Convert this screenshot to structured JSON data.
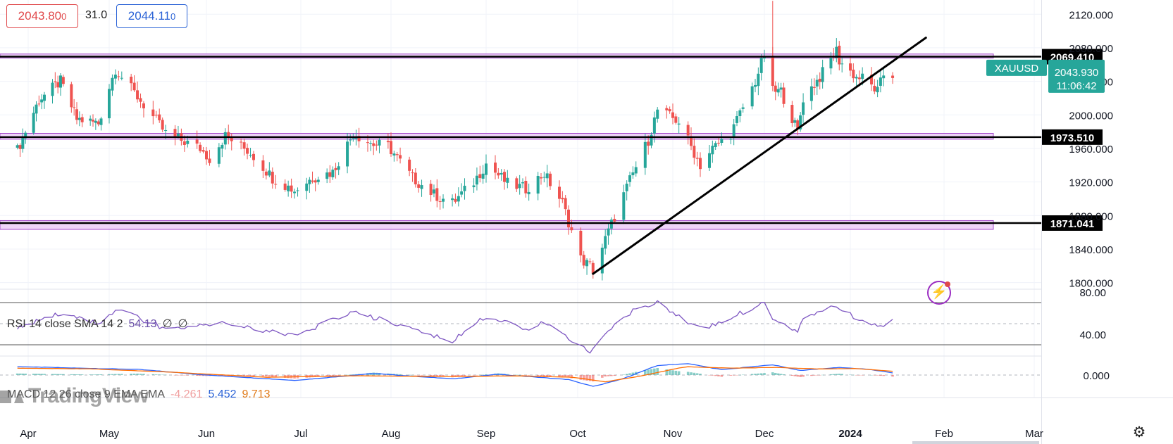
{
  "header": {
    "bid": "2043.80",
    "bid_small": "0",
    "spread": "31.0",
    "ask": "2044.11",
    "ask_small": "0"
  },
  "symbol": "XAUUSD",
  "price_tag": {
    "price": "2043.930",
    "countdown": "11:06:42",
    "color": "#26a69a"
  },
  "colors": {
    "up": "#26a69a",
    "down": "#ef5350",
    "zone_fill": "#e9c6f5",
    "zone_border": "#a347c9",
    "rsi_line": "#7e57c2",
    "macd_line": "#2962ff",
    "signal_line": "#ff6d00"
  },
  "icons": {
    "alert": "lightning-alert-icon",
    "settings": "gear-icon"
  },
  "watermark": "TradingView",
  "chart_data": {
    "type": "candlestick",
    "x_axis_ticks": [
      "Apr",
      "May",
      "Jun",
      "Jul",
      "Aug",
      "Sep",
      "Oct",
      "Nov",
      "Dec",
      "2024",
      "Feb",
      "Mar"
    ],
    "y_axis_ticks": [
      "2120.000",
      "2080.000",
      "2040.000",
      "2000.000",
      "1960.000",
      "1920.000",
      "1880.000",
      "1840.000",
      "1800.000"
    ],
    "ylim": [
      1793,
      2137
    ],
    "horizontal_levels": [
      "2069.410",
      "1973.510",
      "1871.041"
    ],
    "zones": [
      {
        "low": 2067.8,
        "high": 2072.6
      },
      {
        "low": 1971.0,
        "high": 1978.0
      },
      {
        "low": 1863.5,
        "high": 1874.0
      }
    ],
    "trendline": {
      "from": {
        "date": "2023-10-06",
        "price": 1810.5
      },
      "to": {
        "date": "2024-01-26",
        "price": 2092.0
      }
    },
    "pivots": [
      [
        "2023-03-28",
        1958
      ],
      [
        "2023-04-05",
        2018
      ],
      [
        "2023-04-13",
        2040
      ],
      [
        "2023-04-19",
        1995
      ],
      [
        "2023-04-27",
        1990
      ],
      [
        "2023-05-03",
        2055
      ],
      [
        "2023-05-04",
        2050
      ],
      [
        "2023-05-12",
        2012
      ],
      [
        "2023-05-19",
        1978
      ],
      [
        "2023-05-30",
        1960
      ],
      [
        "2023-06-02",
        1948
      ],
      [
        "2023-06-07",
        1975
      ],
      [
        "2023-06-15",
        1955
      ],
      [
        "2023-06-22",
        1925
      ],
      [
        "2023-06-29",
        1910
      ],
      [
        "2023-07-05",
        1925
      ],
      [
        "2023-07-12",
        1932
      ],
      [
        "2023-07-19",
        1978
      ],
      [
        "2023-07-26",
        1965
      ],
      [
        "2023-07-31",
        1963
      ],
      [
        "2023-08-08",
        1925
      ],
      [
        "2023-08-15",
        1905
      ],
      [
        "2023-08-21",
        1895
      ],
      [
        "2023-08-28",
        1920
      ],
      [
        "2023-09-01",
        1942
      ],
      [
        "2023-09-08",
        1918
      ],
      [
        "2023-09-14",
        1912
      ],
      [
        "2023-09-20",
        1930
      ],
      [
        "2023-09-26",
        1895
      ],
      [
        "2023-10-02",
        1828
      ],
      [
        "2023-10-05",
        1820
      ],
      [
        "2023-10-06",
        1815
      ],
      [
        "2023-10-12",
        1870
      ],
      [
        "2023-10-18",
        1922
      ],
      [
        "2023-10-24",
        1970
      ],
      [
        "2023-10-27",
        2006
      ],
      [
        "2023-11-03",
        1992
      ],
      [
        "2023-11-10",
        1940
      ],
      [
        "2023-11-14",
        1960
      ],
      [
        "2023-11-20",
        1978
      ],
      [
        "2023-11-28",
        2040
      ],
      [
        "2023-12-01",
        2072
      ],
      [
        "2023-12-04",
        2028
      ],
      [
        "2023-12-07",
        2028
      ],
      [
        "2023-12-13",
        1980
      ],
      [
        "2023-12-15",
        2020
      ],
      [
        "2023-12-21",
        2045
      ],
      [
        "2023-12-27",
        2077
      ],
      [
        "2023-12-28",
        2065
      ],
      [
        "2024-01-03",
        2045
      ],
      [
        "2024-01-05",
        2044
      ],
      [
        "2024-01-10",
        2028
      ],
      [
        "2024-01-12",
        2048
      ],
      [
        "2024-01-15",
        2043.93
      ]
    ],
    "rsi": {
      "label": "RSI 14 close SMA 14 2",
      "value": "54.13",
      "extra": [
        "∅",
        "∅"
      ],
      "y_axis_ticks": [
        "80.00",
        "40.00"
      ],
      "ylim": [
        20,
        82
      ],
      "bands": [
        70,
        30
      ],
      "midline": 50,
      "pivots": [
        [
          "2023-03-28",
          45
        ],
        [
          "2023-04-13",
          60
        ],
        [
          "2023-04-27",
          50
        ],
        [
          "2023-05-04",
          63
        ],
        [
          "2023-05-19",
          45
        ],
        [
          "2023-06-07",
          50
        ],
        [
          "2023-06-29",
          38
        ],
        [
          "2023-07-19",
          62
        ],
        [
          "2023-08-21",
          33
        ],
        [
          "2023-09-01",
          57
        ],
        [
          "2023-09-14",
          45
        ],
        [
          "2023-09-20",
          52
        ],
        [
          "2023-10-05",
          22
        ],
        [
          "2023-10-13",
          48
        ],
        [
          "2023-10-20",
          65
        ],
        [
          "2023-10-27",
          70
        ],
        [
          "2023-11-10",
          45
        ],
        [
          "2023-11-20",
          55
        ],
        [
          "2023-12-01",
          71
        ],
        [
          "2023-12-04",
          55
        ],
        [
          "2023-12-13",
          43
        ],
        [
          "2023-12-15",
          56
        ],
        [
          "2023-12-27",
          66
        ],
        [
          "2024-01-05",
          52
        ],
        [
          "2024-01-10",
          47
        ],
        [
          "2024-01-15",
          54.13
        ]
      ]
    },
    "macd": {
      "label": "MACD 12 26 close 9 EMA EMA",
      "hist": "-4.261",
      "macd": "5.452",
      "signal": "9.713",
      "y_axis_ticks": [
        "0.000"
      ],
      "ylim": [
        -50,
        48
      ],
      "macd_pivots": [
        [
          "2023-03-28",
          22
        ],
        [
          "2023-04-20",
          18
        ],
        [
          "2023-05-10",
          15
        ],
        [
          "2023-06-01",
          0
        ],
        [
          "2023-06-29",
          -14
        ],
        [
          "2023-07-26",
          4
        ],
        [
          "2023-08-21",
          -10
        ],
        [
          "2023-09-05",
          2
        ],
        [
          "2023-09-28",
          -12
        ],
        [
          "2023-10-06",
          -30
        ],
        [
          "2023-10-15",
          -12
        ],
        [
          "2023-10-27",
          25
        ],
        [
          "2023-11-06",
          30
        ],
        [
          "2023-11-17",
          14
        ],
        [
          "2023-12-04",
          27
        ],
        [
          "2023-12-14",
          12
        ],
        [
          "2023-12-28",
          20
        ],
        [
          "2024-01-08",
          14
        ],
        [
          "2024-01-15",
          5.452
        ]
      ],
      "signal_pivots": [
        [
          "2023-03-28",
          18
        ],
        [
          "2023-04-25",
          16
        ],
        [
          "2023-05-20",
          8
        ],
        [
          "2023-06-20",
          -6
        ],
        [
          "2023-07-20",
          -2
        ],
        [
          "2023-08-20",
          -4
        ],
        [
          "2023-09-10",
          -2
        ],
        [
          "2023-09-30",
          -6
        ],
        [
          "2023-10-10",
          -18
        ],
        [
          "2023-10-22",
          -2
        ],
        [
          "2023-11-05",
          22
        ],
        [
          "2023-11-20",
          18
        ],
        [
          "2023-12-05",
          20
        ],
        [
          "2023-12-20",
          16
        ],
        [
          "2024-01-03",
          17
        ],
        [
          "2024-01-15",
          9.713
        ]
      ]
    }
  }
}
